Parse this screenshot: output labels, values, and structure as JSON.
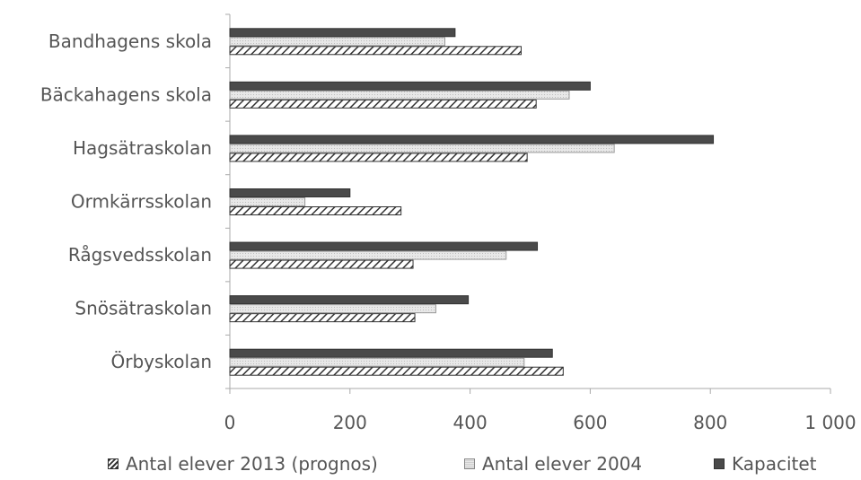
{
  "chart_data": {
    "type": "bar",
    "orientation": "horizontal",
    "categories": [
      "Bandhagens skola",
      "Bäckahagens skola",
      "Hagsätraskolan",
      "Ormkärrsskolan",
      "Rågsvedsskolan",
      "Snösätraskolan",
      "Örbyskolan"
    ],
    "series": [
      {
        "name": "Antal elever 2013 (prognos)",
        "values": [
          485,
          510,
          495,
          285,
          305,
          308,
          555
        ],
        "pattern": "hatch"
      },
      {
        "name": "Antal elever 2004",
        "values": [
          358,
          565,
          640,
          125,
          460,
          343,
          490
        ],
        "pattern": "light"
      },
      {
        "name": "Kapacitet",
        "values": [
          375,
          600,
          805,
          200,
          512,
          397,
          537
        ],
        "pattern": "dark"
      }
    ],
    "xlim": [
      0,
      1000
    ],
    "xticks": [
      0,
      200,
      400,
      600,
      800,
      1000
    ],
    "xtick_labels": [
      "0",
      "200",
      "400",
      "600",
      "800",
      "1 000"
    ],
    "grid": false,
    "legend_position": "bottom",
    "colors": {
      "hatch_stroke": "#333333",
      "light": "#dcdcdc",
      "dark": "#4a4a4a",
      "axis": "#aaaaaa"
    }
  }
}
